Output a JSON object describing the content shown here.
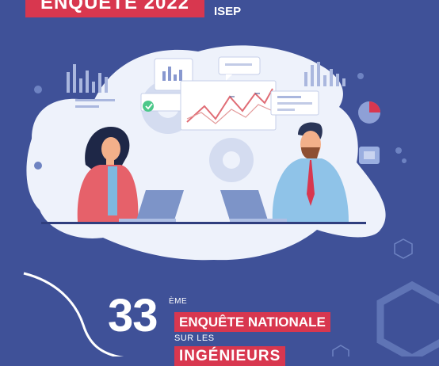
{
  "cover": {
    "badge": "ENQUÊTE 2022",
    "org": "ISEP",
    "number": "33",
    "suffix": "ÈME",
    "line1": "ENQUÊTE NATIONALE",
    "line2": "SUR LES",
    "line3": "INGÉNIEURS"
  },
  "colors": {
    "background": "#3f5198",
    "accent_red": "#d8374f",
    "cloud": "#eef2fb"
  },
  "icons": [
    "gear-icon",
    "line-chart-icon",
    "pie-chart-icon",
    "bar-chart-icon",
    "laptop-icon",
    "hexagon-logo-icon"
  ]
}
